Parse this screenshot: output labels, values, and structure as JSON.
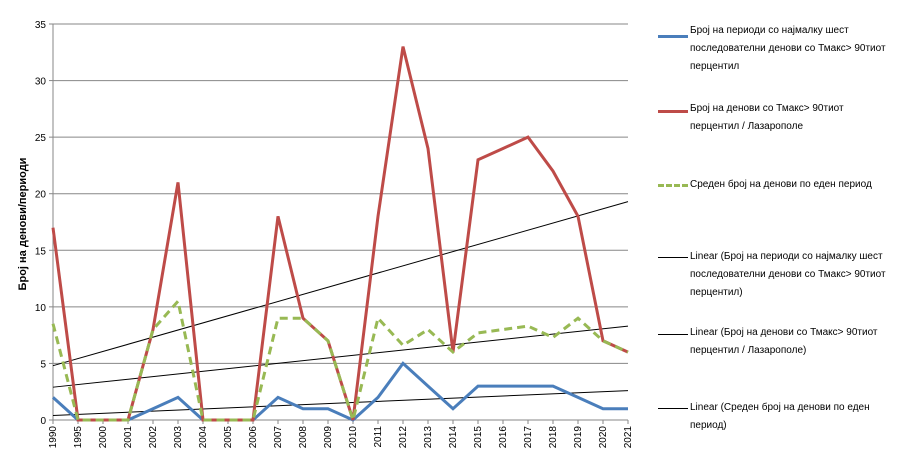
{
  "chart_data": {
    "type": "line",
    "ylabel": "Број на денови/периоди",
    "ylim": [
      0,
      35
    ],
    "yticks": [
      0,
      5,
      10,
      15,
      20,
      25,
      30,
      35
    ],
    "grid": "horizontal",
    "legend_position": "right",
    "categories": [
      "1990",
      "1995",
      "2000",
      "2001",
      "2002",
      "2003",
      "2004",
      "2005",
      "2006",
      "2007",
      "2008",
      "2009",
      "2010",
      "2011",
      "2012",
      "2013",
      "2014",
      "2015",
      "2016",
      "2017",
      "2018",
      "2019",
      "2020",
      "2021"
    ],
    "series": [
      {
        "name": "Број на периоди со најмалку шест последователни денови  со Тмакс> 90тиот перцентил",
        "color": "#4a7ebb",
        "style": "solid",
        "values": [
          2,
          0,
          0,
          0,
          1,
          2,
          0,
          0,
          0,
          2,
          1,
          1,
          0,
          2,
          5,
          3,
          1,
          3,
          3,
          3,
          3,
          2,
          1,
          1
        ]
      },
      {
        "name": "Број на денови  со Тмакс> 90тиот перцентил  / Лазарополе",
        "color": "#be4b48",
        "style": "solid",
        "values": [
          17,
          0,
          0,
          0,
          8,
          21,
          0,
          0,
          0,
          18,
          9,
          7,
          0,
          18,
          33,
          24,
          6,
          23,
          24,
          25,
          22,
          18,
          7,
          6
        ]
      },
      {
        "name": "Среден  број на денови  по еден  период",
        "color": "#98b954",
        "style": "dashed",
        "values": [
          8.5,
          0,
          0,
          0,
          8,
          10.5,
          0,
          0,
          0,
          9,
          9,
          7,
          0,
          9,
          6.6,
          8,
          6,
          7.7,
          8,
          8.3,
          7.3,
          9,
          7,
          6
        ]
      }
    ],
    "trendlines": [
      {
        "name": "Linear (Број на периоди  со најмалку шест последователни денови  со Тмакс> 90тиот перцентил)",
        "start": 0.4,
        "end": 2.6
      },
      {
        "name": "Linear (Број на денови  со Тмакс> 90тиот перцентил  / Лазарополе)",
        "start": 4.8,
        "end": 19.3
      },
      {
        "name": "Linear (Среден  број на денови  по еден  период)",
        "start": 2.9,
        "end": 8.3
      }
    ]
  }
}
